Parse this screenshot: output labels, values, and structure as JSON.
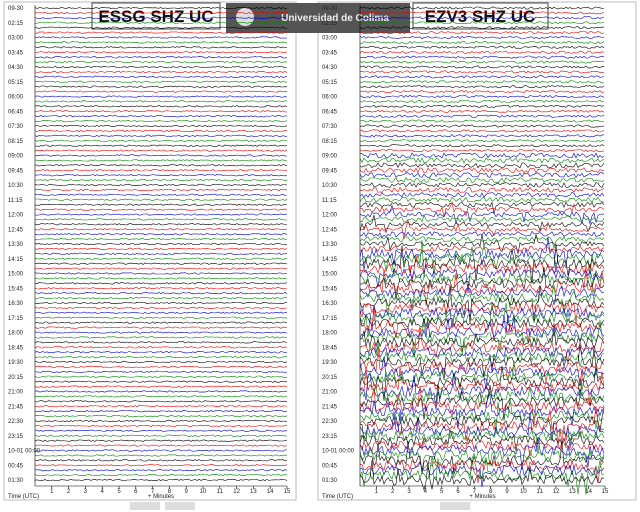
{
  "header": {
    "institution": "Universidad de Colima"
  },
  "panels": [
    {
      "title": "ESSG SHZ UC",
      "time_labels": [
        "09-30",
        "02:15",
        "03:00",
        "03:45",
        "04:30",
        "05:15",
        "06:00",
        "06:45",
        "07:30",
        "08:15",
        "09:00",
        "09:45",
        "10:30",
        "11:15",
        "12:00",
        "12:45",
        "13:30",
        "14:15",
        "15:00",
        "15:45",
        "16:30",
        "17:15",
        "18:00",
        "18:45",
        "19:30",
        "20:15",
        "21:00",
        "21:45",
        "22:30",
        "23:15",
        "10-01 00:00",
        "00:45",
        "01:30"
      ],
      "x_ticks": [
        1,
        2,
        3,
        4,
        5,
        6,
        7,
        8,
        9,
        10,
        11,
        12,
        13,
        14,
        15
      ],
      "x_label": "+ Minutes",
      "time_axis_label": "Time (UTC)"
    },
    {
      "title": "EZV3 SHZ UC",
      "time_labels": [
        "09-30",
        "02:15",
        "03:00",
        "03:45",
        "04:30",
        "05:15",
        "06:00",
        "06:45",
        "07:30",
        "08:15",
        "09:00",
        "09:45",
        "10:30",
        "11:15",
        "12:00",
        "12:45",
        "13:30",
        "14:15",
        "15:00",
        "15:45",
        "16:30",
        "17:15",
        "18:00",
        "18:45",
        "19:30",
        "20:15",
        "21:00",
        "21:45",
        "22:30",
        "23:15",
        "10-01 00:00",
        "00:45",
        "01:30"
      ],
      "x_ticks": [
        1,
        2,
        3,
        4,
        5,
        6,
        7,
        8,
        9,
        10,
        11,
        12,
        13,
        14,
        15
      ],
      "x_label": "+ Minutes",
      "time_axis_label": "Time (UTC)"
    }
  ]
}
